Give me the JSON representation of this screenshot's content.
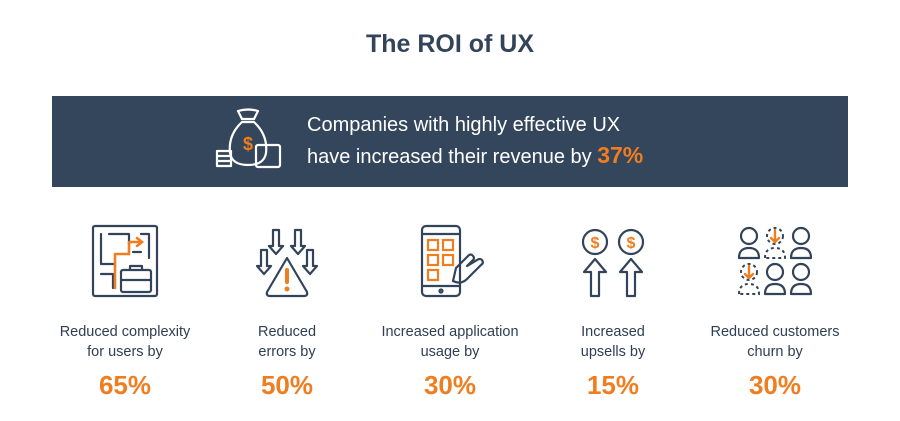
{
  "title": "The ROI of UX",
  "banner": {
    "icon": "money-bag-icon",
    "line1": "Companies with highly effective UX",
    "line2": "have increased their revenue by",
    "value": "37%"
  },
  "stats": [
    {
      "icon": "maze-briefcase-icon",
      "line1": "Reduced complexity",
      "line2": "for users by",
      "value": "65%"
    },
    {
      "icon": "warning-arrows-icon",
      "line1": "Reduced",
      "line2": "errors by",
      "value": "50%"
    },
    {
      "icon": "phone-tap-icon",
      "line1": "Increased application",
      "line2": "usage by",
      "value": "30%"
    },
    {
      "icon": "dollar-up-arrows-icon",
      "line1": "Increased",
      "line2": "upsells by",
      "value": "15%"
    },
    {
      "icon": "customers-icon",
      "line1": "Reduced customers",
      "line2": "churn by",
      "value": "30%"
    }
  ],
  "colors": {
    "navy": "#34465c",
    "accent": "#f07d1f",
    "text": "#2f3e52"
  }
}
